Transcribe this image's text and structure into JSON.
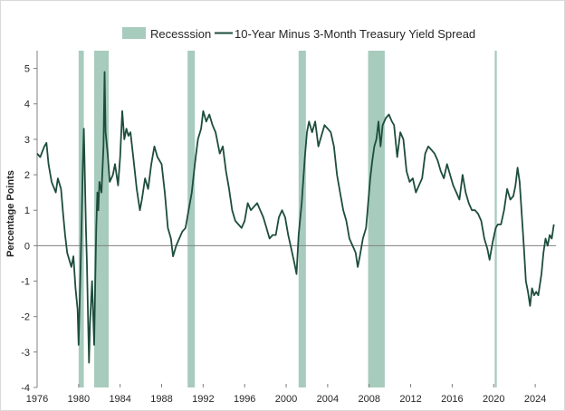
{
  "chart_data": {
    "type": "line",
    "title": "",
    "xlabel": "",
    "ylabel": "Percentage Points",
    "xlim": [
      1976,
      2026
    ],
    "ylim": [
      -4,
      5.5
    ],
    "x_ticks": [
      "1976",
      "1980",
      "1984",
      "1988",
      "1992",
      "1996",
      "2000",
      "2004",
      "2008",
      "2012",
      "2016",
      "2020",
      "2024"
    ],
    "y_ticks": [
      "-4",
      "-3",
      "-2",
      "-1",
      "0",
      "1",
      "2",
      "3",
      "4",
      "5"
    ],
    "legend": {
      "position": "top-center",
      "recession_label": "Recesssion"
    },
    "grid": false,
    "colors": {
      "line": "#1d4d3c",
      "recession": "#a7cbbd",
      "axis": "#808080"
    },
    "recessions": [
      {
        "start": 1980.0,
        "end": 1980.5
      },
      {
        "start": 1981.5,
        "end": 1982.9
      },
      {
        "start": 1990.5,
        "end": 1991.2
      },
      {
        "start": 2001.2,
        "end": 2001.9
      },
      {
        "start": 2007.9,
        "end": 2009.5
      },
      {
        "start": 2020.1,
        "end": 2020.3
      }
    ],
    "series": [
      {
        "name": "10-Year Minus 3-Month Treasury Yield Spread",
        "points": [
          [
            1976.0,
            2.6
          ],
          [
            1976.3,
            2.5
          ],
          [
            1976.7,
            2.8
          ],
          [
            1976.9,
            2.9
          ],
          [
            1977.1,
            2.3
          ],
          [
            1977.4,
            1.8
          ],
          [
            1977.8,
            1.5
          ],
          [
            1978.0,
            1.9
          ],
          [
            1978.3,
            1.6
          ],
          [
            1978.5,
            0.9
          ],
          [
            1978.7,
            0.3
          ],
          [
            1978.9,
            -0.2
          ],
          [
            1979.1,
            -0.4
          ],
          [
            1979.3,
            -0.6
          ],
          [
            1979.5,
            -0.3
          ],
          [
            1979.7,
            -1.2
          ],
          [
            1979.9,
            -1.8
          ],
          [
            1980.0,
            -2.8
          ],
          [
            1980.2,
            -0.5
          ],
          [
            1980.3,
            0.8
          ],
          [
            1980.4,
            2.2
          ],
          [
            1980.5,
            3.3
          ],
          [
            1980.6,
            2.0
          ],
          [
            1980.7,
            0.5
          ],
          [
            1980.8,
            -0.5
          ],
          [
            1980.9,
            -2.0
          ],
          [
            1981.0,
            -3.3
          ],
          [
            1981.1,
            -2.2
          ],
          [
            1981.3,
            -1.0
          ],
          [
            1981.5,
            -2.8
          ],
          [
            1981.6,
            -1.0
          ],
          [
            1981.7,
            0.5
          ],
          [
            1981.8,
            1.5
          ],
          [
            1981.9,
            1.0
          ],
          [
            1982.0,
            1.8
          ],
          [
            1982.2,
            1.5
          ],
          [
            1982.4,
            2.8
          ],
          [
            1982.5,
            4.9
          ],
          [
            1982.6,
            3.2
          ],
          [
            1982.8,
            2.6
          ],
          [
            1983.0,
            1.8
          ],
          [
            1983.3,
            2.0
          ],
          [
            1983.5,
            2.3
          ],
          [
            1983.8,
            1.7
          ],
          [
            1984.0,
            2.5
          ],
          [
            1984.2,
            3.8
          ],
          [
            1984.4,
            3.0
          ],
          [
            1984.6,
            3.3
          ],
          [
            1984.8,
            3.1
          ],
          [
            1985.0,
            3.2
          ],
          [
            1985.3,
            2.4
          ],
          [
            1985.6,
            1.6
          ],
          [
            1985.9,
            1.0
          ],
          [
            1986.1,
            1.3
          ],
          [
            1986.4,
            1.9
          ],
          [
            1986.7,
            1.6
          ],
          [
            1987.0,
            2.3
          ],
          [
            1987.3,
            2.8
          ],
          [
            1987.6,
            2.5
          ],
          [
            1988.0,
            2.3
          ],
          [
            1988.3,
            1.5
          ],
          [
            1988.6,
            0.5
          ],
          [
            1988.9,
            0.2
          ],
          [
            1989.1,
            -0.3
          ],
          [
            1989.4,
            0.0
          ],
          [
            1989.7,
            0.2
          ],
          [
            1990.0,
            0.4
          ],
          [
            1990.3,
            0.5
          ],
          [
            1990.6,
            1.0
          ],
          [
            1990.9,
            1.5
          ],
          [
            1991.2,
            2.3
          ],
          [
            1991.5,
            3.0
          ],
          [
            1991.8,
            3.3
          ],
          [
            1992.0,
            3.8
          ],
          [
            1992.3,
            3.5
          ],
          [
            1992.6,
            3.7
          ],
          [
            1992.9,
            3.4
          ],
          [
            1993.2,
            3.2
          ],
          [
            1993.6,
            2.6
          ],
          [
            1993.9,
            2.8
          ],
          [
            1994.2,
            2.1
          ],
          [
            1994.5,
            1.6
          ],
          [
            1994.8,
            1.0
          ],
          [
            1995.1,
            0.7
          ],
          [
            1995.4,
            0.6
          ],
          [
            1995.7,
            0.5
          ],
          [
            1996.0,
            0.7
          ],
          [
            1996.3,
            1.2
          ],
          [
            1996.6,
            1.0
          ],
          [
            1996.9,
            1.1
          ],
          [
            1997.2,
            1.2
          ],
          [
            1997.5,
            1.0
          ],
          [
            1997.8,
            0.8
          ],
          [
            1998.1,
            0.5
          ],
          [
            1998.4,
            0.2
          ],
          [
            1998.7,
            0.3
          ],
          [
            1999.0,
            0.3
          ],
          [
            1999.3,
            0.8
          ],
          [
            1999.6,
            1.0
          ],
          [
            1999.9,
            0.8
          ],
          [
            2000.2,
            0.3
          ],
          [
            2000.5,
            -0.1
          ],
          [
            2000.8,
            -0.5
          ],
          [
            2001.0,
            -0.8
          ],
          [
            2001.2,
            0.3
          ],
          [
            2001.5,
            1.2
          ],
          [
            2001.8,
            2.5
          ],
          [
            2002.0,
            3.2
          ],
          [
            2002.2,
            3.5
          ],
          [
            2002.5,
            3.2
          ],
          [
            2002.8,
            3.5
          ],
          [
            2003.1,
            2.8
          ],
          [
            2003.4,
            3.1
          ],
          [
            2003.7,
            3.4
          ],
          [
            2004.0,
            3.3
          ],
          [
            2004.3,
            3.2
          ],
          [
            2004.6,
            2.8
          ],
          [
            2004.9,
            2.0
          ],
          [
            2005.2,
            1.5
          ],
          [
            2005.5,
            1.0
          ],
          [
            2005.8,
            0.7
          ],
          [
            2006.1,
            0.2
          ],
          [
            2006.4,
            0.0
          ],
          [
            2006.7,
            -0.2
          ],
          [
            2006.9,
            -0.6
          ],
          [
            2007.1,
            -0.3
          ],
          [
            2007.4,
            0.2
          ],
          [
            2007.7,
            0.5
          ],
          [
            2007.9,
            1.2
          ],
          [
            2008.1,
            1.9
          ],
          [
            2008.3,
            2.4
          ],
          [
            2008.5,
            2.8
          ],
          [
            2008.7,
            3.0
          ],
          [
            2008.9,
            3.5
          ],
          [
            2009.1,
            2.8
          ],
          [
            2009.3,
            3.4
          ],
          [
            2009.6,
            3.6
          ],
          [
            2009.9,
            3.7
          ],
          [
            2010.2,
            3.5
          ],
          [
            2010.4,
            3.4
          ],
          [
            2010.7,
            2.5
          ],
          [
            2011.0,
            3.2
          ],
          [
            2011.3,
            3.0
          ],
          [
            2011.6,
            2.1
          ],
          [
            2011.9,
            1.8
          ],
          [
            2012.2,
            1.9
          ],
          [
            2012.5,
            1.5
          ],
          [
            2012.8,
            1.7
          ],
          [
            2013.1,
            1.9
          ],
          [
            2013.4,
            2.6
          ],
          [
            2013.7,
            2.8
          ],
          [
            2014.0,
            2.7
          ],
          [
            2014.3,
            2.6
          ],
          [
            2014.6,
            2.4
          ],
          [
            2014.9,
            2.1
          ],
          [
            2015.2,
            1.9
          ],
          [
            2015.5,
            2.3
          ],
          [
            2015.8,
            2.0
          ],
          [
            2016.1,
            1.7
          ],
          [
            2016.4,
            1.5
          ],
          [
            2016.7,
            1.3
          ],
          [
            2017.0,
            2.0
          ],
          [
            2017.3,
            1.5
          ],
          [
            2017.6,
            1.2
          ],
          [
            2017.9,
            1.0
          ],
          [
            2018.2,
            1.0
          ],
          [
            2018.5,
            0.9
          ],
          [
            2018.8,
            0.7
          ],
          [
            2019.1,
            0.2
          ],
          [
            2019.4,
            -0.1
          ],
          [
            2019.6,
            -0.4
          ],
          [
            2019.9,
            0.1
          ],
          [
            2020.2,
            0.5
          ],
          [
            2020.4,
            0.6
          ],
          [
            2020.7,
            0.6
          ],
          [
            2021.0,
            1.0
          ],
          [
            2021.3,
            1.6
          ],
          [
            2021.6,
            1.3
          ],
          [
            2021.9,
            1.4
          ],
          [
            2022.1,
            1.7
          ],
          [
            2022.3,
            2.2
          ],
          [
            2022.5,
            1.8
          ],
          [
            2022.7,
            0.9
          ],
          [
            2022.9,
            0.0
          ],
          [
            2023.1,
            -1.0
          ],
          [
            2023.3,
            -1.3
          ],
          [
            2023.5,
            -1.7
          ],
          [
            2023.7,
            -1.2
          ],
          [
            2023.9,
            -1.4
          ],
          [
            2024.1,
            -1.3
          ],
          [
            2024.3,
            -1.4
          ],
          [
            2024.6,
            -0.8
          ],
          [
            2024.8,
            -0.2
          ],
          [
            2025.0,
            0.2
          ],
          [
            2025.2,
            0.0
          ],
          [
            2025.4,
            0.3
          ],
          [
            2025.6,
            0.2
          ],
          [
            2025.8,
            0.6
          ]
        ]
      }
    ]
  }
}
